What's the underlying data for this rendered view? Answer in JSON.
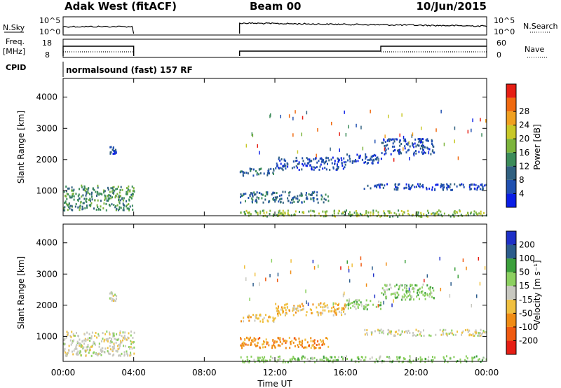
{
  "header": {
    "station": "Adak West (fitACF)",
    "beam": "Beam 00",
    "date": "10/Jun/2015"
  },
  "status_panels": {
    "nsky": {
      "label": "N.Sky",
      "ticks": [
        "10^5",
        "10^0"
      ]
    },
    "nsearch": {
      "label": "N.Search",
      "ticks": [
        "10^5",
        "10^0"
      ]
    },
    "freq": {
      "label_line1": "Freq.",
      "label_line2": "[MHz]",
      "ticks": [
        "18",
        "8"
      ]
    },
    "nave": {
      "label": "Nave",
      "ticks": [
        "60",
        "0"
      ]
    },
    "cpid": {
      "label": "CPID",
      "value": "normalsound (fast) 157 RF"
    }
  },
  "colors": {
    "power": [
      "#0a1ee6",
      "#2050b0",
      "#306080",
      "#3c8c5a",
      "#7cb43c",
      "#c8c828",
      "#f0a020",
      "#f06a10",
      "#e61e14"
    ],
    "velocity": [
      "#e61e14",
      "#f05a10",
      "#f08c14",
      "#f0c040",
      "#c8c8c0",
      "#8cd060",
      "#3ca03c",
      "#2c5c8c",
      "#1e30c8"
    ]
  },
  "chart_data": [
    {
      "type": "heatmap",
      "name": "power",
      "xlabel": "",
      "ylabel": "Slant Range [km]",
      "x_ticks": [
        "00:00",
        "04:00",
        "08:00",
        "12:00",
        "16:00",
        "20:00",
        "00:00"
      ],
      "y_ticks": [
        "1000",
        "2000",
        "3000",
        "4000"
      ],
      "ylim": [
        200,
        4600
      ],
      "colorbar": {
        "label": "Power [dB]",
        "ticks": [
          "4",
          "8",
          "12",
          "16",
          "20",
          "24",
          "28"
        ],
        "range": [
          0,
          32
        ]
      },
      "regions": [
        {
          "t0": 0.0,
          "t1": 4.0,
          "r0": 400,
          "r1": 1200,
          "level": 10
        },
        {
          "t0": 2.6,
          "t1": 3.0,
          "r0": 2150,
          "r1": 2450,
          "level": 4
        },
        {
          "t0": 10.0,
          "t1": 12.0,
          "r0": 1500,
          "r1": 1750,
          "level": 6
        },
        {
          "t0": 10.0,
          "t1": 15.0,
          "r0": 650,
          "r1": 1000,
          "level": 7
        },
        {
          "t0": 12.0,
          "t1": 16.0,
          "r0": 1700,
          "r1": 2100,
          "level": 5
        },
        {
          "t0": 16.0,
          "t1": 18.0,
          "r0": 1900,
          "r1": 2200,
          "level": 4
        },
        {
          "t0": 18.0,
          "t1": 21.0,
          "r0": 2200,
          "r1": 2700,
          "level": 5
        },
        {
          "t0": 17.0,
          "t1": 24.0,
          "r0": 1050,
          "r1": 1250,
          "level": 4
        },
        {
          "t0": 10.0,
          "t1": 24.0,
          "r0": 200,
          "r1": 400,
          "level": 14
        }
      ]
    },
    {
      "type": "heatmap",
      "name": "velocity",
      "xlabel": "Time UT",
      "ylabel": "Slant Range [km]",
      "x_ticks": [
        "00:00",
        "04:00",
        "08:00",
        "12:00",
        "16:00",
        "20:00",
        "00:00"
      ],
      "y_ticks": [
        "1000",
        "2000",
        "3000",
        "4000"
      ],
      "ylim": [
        200,
        4600
      ],
      "colorbar": {
        "label": "Velocity [m s⁻¹]",
        "ticks": [
          "-200",
          "-100",
          "-50",
          "-15",
          "15",
          "50",
          "100",
          "200"
        ]
      },
      "regions": [
        {
          "t0": 0.0,
          "t1": 4.0,
          "r0": 400,
          "r1": 1200,
          "level": 0
        },
        {
          "t0": 2.6,
          "t1": 3.0,
          "r0": 2150,
          "r1": 2450,
          "level": 0
        },
        {
          "t0": 10.0,
          "t1": 12.0,
          "r0": 1500,
          "r1": 1750,
          "level": -1
        },
        {
          "t0": 10.0,
          "t1": 15.0,
          "r0": 650,
          "r1": 1000,
          "level": -2
        },
        {
          "t0": 12.0,
          "t1": 16.0,
          "r0": 1700,
          "r1": 2100,
          "level": -1
        },
        {
          "t0": 16.0,
          "t1": 18.0,
          "r0": 1900,
          "r1": 2200,
          "level": 1
        },
        {
          "t0": 18.0,
          "t1": 21.0,
          "r0": 2200,
          "r1": 2700,
          "level": 1
        },
        {
          "t0": 17.0,
          "t1": 24.0,
          "r0": 1050,
          "r1": 1250,
          "level": 0
        },
        {
          "t0": 10.0,
          "t1": 24.0,
          "r0": 200,
          "r1": 400,
          "level": 1
        }
      ]
    }
  ]
}
